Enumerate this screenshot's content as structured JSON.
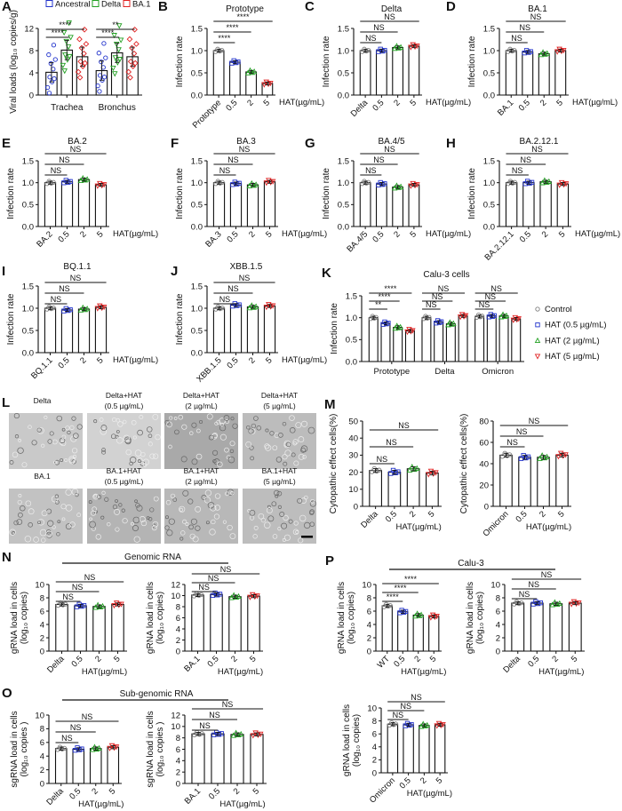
{
  "colors": {
    "control": "#808080",
    "c05": "#2233cc",
    "c2": "#22a022",
    "c5": "#e02222"
  },
  "micrographs": {
    "panel": "L",
    "images": [
      {
        "line1": "Delta",
        "line2": ""
      },
      {
        "line1": "Delta+HAT",
        "line2": "(0.5 µg/mL)"
      },
      {
        "line1": "Delta+HAT",
        "line2": "(2 µg/mL)"
      },
      {
        "line1": "Delta+HAT",
        "line2": "(5 µg/mL)"
      },
      {
        "line1": "BA.1",
        "line2": ""
      },
      {
        "line1": "BA.1+HAT",
        "line2": "(0.5 µg/mL)"
      },
      {
        "line1": "BA.1+HAT",
        "line2": "(2 µg/mL)"
      },
      {
        "line1": "BA.1+HAT",
        "line2": "(5 µg/mL)"
      }
    ]
  },
  "group_headers": [
    "Genomic RNA",
    "Calu-3",
    "Sub-genomic RNA"
  ],
  "chart_data": [
    {
      "panel": "A",
      "type": "bar",
      "title": "",
      "ylabel": [
        "Viral loads (log₁₀ copies/g)"
      ],
      "ylim": [
        0,
        12
      ],
      "yticks": [
        "0",
        "4",
        "8",
        "12"
      ],
      "categories": [
        "Trachea",
        "Bronchus"
      ],
      "legend_position": "top",
      "series": [
        {
          "name": "Ancestral",
          "values": [
            4.1,
            4.4
          ]
        },
        {
          "name": "Delta",
          "values": [
            8.1,
            7.6
          ]
        },
        {
          "name": "BA.1",
          "values": [
            6.9,
            6.9
          ]
        }
      ],
      "significance": [
        {
          "group": 0,
          "from": 0,
          "to": 1,
          "label": "****"
        },
        {
          "group": 0,
          "from": 0,
          "to": 2,
          "label": "****"
        },
        {
          "group": 1,
          "from": 0,
          "to": 1,
          "label": "****"
        },
        {
          "group": 1,
          "from": 0,
          "to": 2,
          "label": "**"
        }
      ]
    },
    {
      "panel": "B",
      "type": "bar",
      "title": "Prototype",
      "ylabel": [
        "Infection rate"
      ],
      "ylim": [
        0,
        1.5
      ],
      "yticks": [
        "0.0",
        "0.5",
        "1.0",
        "1.5"
      ],
      "xunit": "HAT(µg/mL)",
      "categories": [
        "Prototype",
        "0.5",
        "2",
        "5"
      ],
      "values": [
        1.0,
        0.74,
        0.52,
        0.26
      ],
      "significance": [
        {
          "from": 0,
          "to": 1,
          "label": "****"
        },
        {
          "from": 0,
          "to": 2,
          "label": "****"
        },
        {
          "from": 0,
          "to": 3,
          "label": "****"
        }
      ]
    },
    {
      "panel": "C",
      "type": "bar",
      "title": "Delta",
      "ylabel": [
        "Infection rate"
      ],
      "ylim": [
        0,
        1.5
      ],
      "yticks": [
        "0.0",
        "0.5",
        "1.0",
        "1.5"
      ],
      "xunit": "HAT(µg/mL)",
      "categories": [
        "Delta",
        "0.5",
        "2",
        "5"
      ],
      "values": [
        1.0,
        1.0,
        1.07,
        1.1
      ],
      "significance": [
        {
          "from": 0,
          "to": 1,
          "label": "NS"
        },
        {
          "from": 0,
          "to": 2,
          "label": "NS"
        },
        {
          "from": 0,
          "to": 3,
          "label": "NS"
        }
      ]
    },
    {
      "panel": "D",
      "type": "bar",
      "title": "BA.1",
      "ylabel": [
        "Infection rate"
      ],
      "ylim": [
        0,
        1.5
      ],
      "yticks": [
        "0.0",
        "0.5",
        "1.0",
        "1.5"
      ],
      "xunit": "HAT(µg/mL)",
      "categories": [
        "BA.1",
        "0.5",
        "2",
        "5"
      ],
      "values": [
        1.0,
        0.97,
        0.93,
        1.0
      ],
      "significance": [
        {
          "from": 0,
          "to": 1,
          "label": "NS"
        },
        {
          "from": 0,
          "to": 2,
          "label": "NS"
        },
        {
          "from": 0,
          "to": 3,
          "label": "NS"
        }
      ]
    },
    {
      "panel": "E",
      "type": "bar",
      "title": "BA.2",
      "ylabel": [
        "Infection rate"
      ],
      "ylim": [
        0,
        1.5
      ],
      "yticks": [
        "0.0",
        "0.5",
        "1.0",
        "1.5"
      ],
      "xunit": "HAT(µg/mL)",
      "categories": [
        "BA.2",
        "0.5",
        "2",
        "5"
      ],
      "values": [
        1.0,
        1.02,
        1.07,
        0.95
      ],
      "significance": [
        {
          "from": 0,
          "to": 1,
          "label": "NS"
        },
        {
          "from": 0,
          "to": 2,
          "label": "NS"
        },
        {
          "from": 0,
          "to": 3,
          "label": "NS"
        }
      ]
    },
    {
      "panel": "F",
      "type": "bar",
      "title": "BA.3",
      "ylabel": [
        "Infection rate"
      ],
      "ylim": [
        0,
        1.5
      ],
      "yticks": [
        "0.0",
        "0.5",
        "1.0",
        "1.5"
      ],
      "xunit": "HAT(µg/mL)",
      "categories": [
        "BA.3",
        "0.5",
        "2",
        "5"
      ],
      "values": [
        1.0,
        0.98,
        0.95,
        1.02
      ],
      "significance": [
        {
          "from": 0,
          "to": 1,
          "label": "NS"
        },
        {
          "from": 0,
          "to": 2,
          "label": "NS"
        },
        {
          "from": 0,
          "to": 3,
          "label": "NS"
        }
      ]
    },
    {
      "panel": "G",
      "type": "bar",
      "title": "BA.4/5",
      "ylabel": [
        "Infection rate"
      ],
      "ylim": [
        0,
        1.5
      ],
      "yticks": [
        "0.0",
        "0.5",
        "1.0",
        "1.5"
      ],
      "xunit": "HAT(µg/mL)",
      "categories": [
        "BA.4/5",
        "0.5",
        "2",
        "5"
      ],
      "values": [
        1.0,
        0.97,
        0.9,
        0.95
      ],
      "significance": [
        {
          "from": 0,
          "to": 1,
          "label": "NS"
        },
        {
          "from": 0,
          "to": 2,
          "label": "NS"
        },
        {
          "from": 0,
          "to": 3,
          "label": "NS"
        }
      ]
    },
    {
      "panel": "H",
      "type": "bar",
      "title": "BA.2.12.1",
      "ylabel": [
        "Infection rate"
      ],
      "ylim": [
        0,
        1.5
      ],
      "yticks": [
        "0.0",
        "0.5",
        "1.0",
        "1.5"
      ],
      "xunit": "HAT(µg/mL)",
      "categories": [
        "BA.2.12.1",
        "0.5",
        "2",
        "5"
      ],
      "values": [
        1.0,
        1.0,
        1.02,
        0.97
      ],
      "significance": [
        {
          "from": 0,
          "to": 1,
          "label": "NS"
        },
        {
          "from": 0,
          "to": 2,
          "label": "NS"
        },
        {
          "from": 0,
          "to": 3,
          "label": "NS"
        }
      ]
    },
    {
      "panel": "I",
      "type": "bar",
      "title": "BQ.1.1",
      "ylabel": [
        "Infection rate"
      ],
      "ylim": [
        0,
        1.5
      ],
      "yticks": [
        "0.0",
        "0.5",
        "1.0",
        "1.5"
      ],
      "xunit": "HAT(µg/mL)",
      "categories": [
        "BQ.1.1",
        "0.5",
        "2",
        "5"
      ],
      "values": [
        1.0,
        0.96,
        0.98,
        1.02
      ],
      "significance": [
        {
          "from": 0,
          "to": 1,
          "label": "NS"
        },
        {
          "from": 0,
          "to": 2,
          "label": "NS"
        },
        {
          "from": 0,
          "to": 3,
          "label": "NS"
        }
      ]
    },
    {
      "panel": "J",
      "type": "bar",
      "title": "XBB.1.5",
      "ylabel": [
        "Infection rate"
      ],
      "ylim": [
        0,
        1.5
      ],
      "yticks": [
        "0.0",
        "0.5",
        "1.0",
        "1.5"
      ],
      "xunit": "HAT(µg/mL)",
      "categories": [
        "XBB.1.5",
        "0.5",
        "2",
        "5"
      ],
      "values": [
        1.0,
        1.07,
        1.03,
        1.05
      ],
      "significance": [
        {
          "from": 0,
          "to": 1,
          "label": "NS"
        },
        {
          "from": 0,
          "to": 2,
          "label": "NS"
        },
        {
          "from": 0,
          "to": 3,
          "label": "NS"
        }
      ]
    },
    {
      "panel": "K",
      "type": "bar",
      "title": "Calu-3 cells",
      "ylabel": [
        "Infection rate"
      ],
      "ylim": [
        0,
        1.5
      ],
      "yticks": [
        "0.0",
        "0.5",
        "1.0",
        "1.5"
      ],
      "categories": [
        "Prototype",
        "Delta",
        "Omicron"
      ],
      "legend_position": "right",
      "series": [
        {
          "name": "Control",
          "values": [
            1.0,
            1.0,
            1.03
          ]
        },
        {
          "name": "HAT (0.5 µg/mL)",
          "values": [
            0.87,
            0.9,
            1.04
          ]
        },
        {
          "name": "HAT (2 µg/mL)",
          "values": [
            0.78,
            0.86,
            1.04
          ]
        },
        {
          "name": "HAT (5 µg/mL)",
          "values": [
            0.7,
            1.04,
            0.97
          ]
        }
      ],
      "significance": [
        {
          "group": 0,
          "from": 0,
          "to": 1,
          "label": "**"
        },
        {
          "group": 0,
          "from": 0,
          "to": 2,
          "label": "****"
        },
        {
          "group": 0,
          "from": 0,
          "to": 3,
          "label": "****"
        },
        {
          "group": 1,
          "from": 0,
          "to": 1,
          "label": "NS"
        },
        {
          "group": 1,
          "from": 0,
          "to": 2,
          "label": "NS"
        },
        {
          "group": 1,
          "from": 0,
          "to": 3,
          "label": "NS"
        },
        {
          "group": 2,
          "from": 0,
          "to": 1,
          "label": "NS"
        },
        {
          "group": 2,
          "from": 0,
          "to": 2,
          "label": "NS"
        },
        {
          "group": 2,
          "from": 0,
          "to": 3,
          "label": "NS"
        }
      ]
    },
    {
      "panel": "M",
      "type": "bar",
      "title": "",
      "ylabel": [
        "Cytopathic effect cells(%)"
      ],
      "ylim": [
        0,
        50
      ],
      "yticks": [
        "0",
        "10",
        "20",
        "30",
        "40",
        "50"
      ],
      "xunit": "HAT(µg/mL)",
      "categories": [
        "Delta",
        "0.5",
        "2",
        "5"
      ],
      "values": [
        21,
        20,
        22,
        19.5
      ],
      "significance": [
        {
          "from": 0,
          "to": 1,
          "label": "NS"
        },
        {
          "from": 0,
          "to": 2,
          "label": "NS"
        },
        {
          "from": 0,
          "to": 3,
          "label": "NS"
        }
      ]
    },
    {
      "type": "bar",
      "title": "",
      "ylabel": [
        "Cytopathic effect cells(%)"
      ],
      "ylim": [
        0,
        80
      ],
      "yticks": [
        "0",
        "20",
        "40",
        "60",
        "80"
      ],
      "xunit": "HAT(µg/mL)",
      "categories": [
        "Omicron",
        "0.5",
        "2",
        "5"
      ],
      "values": [
        48,
        46,
        46,
        48
      ],
      "significance": [
        {
          "from": 0,
          "to": 1,
          "label": "NS"
        },
        {
          "from": 0,
          "to": 2,
          "label": "NS"
        },
        {
          "from": 0,
          "to": 3,
          "label": "NS"
        }
      ]
    },
    {
      "panel": "N",
      "type": "bar",
      "title": "",
      "ylabel": [
        "gRNA load in cells",
        "(log₁₀ copies)"
      ],
      "ylim": [
        0,
        10
      ],
      "yticks": [
        "0",
        "2",
        "4",
        "6",
        "8",
        "10"
      ],
      "xunit": "HAT(µg/mL)",
      "categories": [
        "Delta",
        "0.5",
        "2",
        "5"
      ],
      "values": [
        7.0,
        6.8,
        6.7,
        7.0
      ],
      "significance": [
        {
          "from": 0,
          "to": 1,
          "label": "NS"
        },
        {
          "from": 0,
          "to": 2,
          "label": "NS"
        },
        {
          "from": 0,
          "to": 3,
          "label": "NS"
        }
      ]
    },
    {
      "type": "bar",
      "title": "",
      "ylabel": [
        "gRNA load in cells",
        "(log₁₀ copies)"
      ],
      "ylim": [
        0,
        12
      ],
      "yticks": [
        "0",
        "2",
        "4",
        "6",
        "8",
        "10",
        "12"
      ],
      "xunit": "HAT(µg/mL)",
      "categories": [
        "BA.1",
        "0.5",
        "2",
        "5"
      ],
      "values": [
        10.1,
        10.2,
        9.8,
        9.9
      ],
      "significance": [
        {
          "from": 0,
          "to": 1,
          "label": "NS"
        },
        {
          "from": 0,
          "to": 2,
          "label": "NS"
        },
        {
          "from": 0,
          "to": 3,
          "label": "NS"
        }
      ]
    },
    {
      "panel": "P",
      "type": "bar",
      "title": "",
      "ylabel": [
        "gRNA load in cells",
        "(log₁₀ copies)"
      ],
      "ylim": [
        0,
        10
      ],
      "yticks": [
        "0",
        "2",
        "4",
        "6",
        "8",
        "10"
      ],
      "xunit": "HAT(µg/mL)",
      "categories": [
        "WT",
        "0.5",
        "2",
        "5"
      ],
      "values": [
        6.8,
        5.9,
        5.4,
        5.2
      ],
      "significance": [
        {
          "from": 0,
          "to": 1,
          "label": "****"
        },
        {
          "from": 0,
          "to": 2,
          "label": "****"
        },
        {
          "from": 0,
          "to": 3,
          "label": "****"
        }
      ]
    },
    {
      "type": "bar",
      "title": "",
      "ylabel": [
        "gRNA load in cells",
        "(log₁₀ copies)"
      ],
      "ylim": [
        0,
        10
      ],
      "yticks": [
        "0",
        "2",
        "4",
        "6",
        "8",
        "10"
      ],
      "xunit": "HAT(µg/mL)",
      "categories": [
        "Delta",
        "0.5",
        "2",
        "5"
      ],
      "values": [
        7.2,
        7.2,
        7.1,
        7.2
      ],
      "significance": [
        {
          "from": 0,
          "to": 1,
          "label": "NS"
        },
        {
          "from": 0,
          "to": 2,
          "label": "NS"
        },
        {
          "from": 0,
          "to": 3,
          "label": "NS"
        }
      ]
    },
    {
      "panel": "O",
      "type": "bar",
      "title": "",
      "ylabel": [
        "sgRNA load in cells",
        "(log₁₀ copies )"
      ],
      "ylim": [
        0,
        10
      ],
      "yticks": [
        "0",
        "2",
        "4",
        "6",
        "8",
        "10"
      ],
      "xunit": "HAT(µg/mL)",
      "categories": [
        "Delta",
        "0.5",
        "2",
        "5"
      ],
      "values": [
        5.1,
        5.0,
        5.1,
        5.3
      ],
      "significance": [
        {
          "from": 0,
          "to": 1,
          "label": "NS"
        },
        {
          "from": 0,
          "to": 2,
          "label": "NS"
        },
        {
          "from": 0,
          "to": 3,
          "label": "NS"
        }
      ]
    },
    {
      "type": "bar",
      "title": "",
      "ylabel": [
        "sgRNA load in cells",
        "(log₁₀ copies )"
      ],
      "ylim": [
        0,
        12
      ],
      "yticks": [
        "0",
        "2",
        "4",
        "6",
        "8",
        "10",
        "12"
      ],
      "xunit": "HAT(µg/mL)",
      "categories": [
        "BA.1",
        "0.5",
        "2",
        "5"
      ],
      "values": [
        8.7,
        8.7,
        8.6,
        8.6
      ],
      "significance": [
        {
          "from": 0,
          "to": 1,
          "label": "NS"
        },
        {
          "from": 0,
          "to": 2,
          "label": "NS"
        },
        {
          "from": 0,
          "to": 3,
          "label": "NS"
        }
      ]
    },
    {
      "type": "bar",
      "title": "",
      "ylabel": [
        "gRNA load in cells",
        "(log₁₀ copies)"
      ],
      "ylim": [
        0,
        10
      ],
      "yticks": [
        "0",
        "2",
        "4",
        "6",
        "8",
        "10"
      ],
      "xunit": "HAT(µg/mL)",
      "categories": [
        "Omicron",
        "0.5",
        "2",
        "5"
      ],
      "values": [
        7.5,
        7.4,
        7.3,
        7.4
      ],
      "significance": [
        {
          "from": 0,
          "to": 1,
          "label": "NS"
        },
        {
          "from": 0,
          "to": 2,
          "label": "NS"
        },
        {
          "from": 0,
          "to": 3,
          "label": "NS"
        }
      ]
    }
  ]
}
